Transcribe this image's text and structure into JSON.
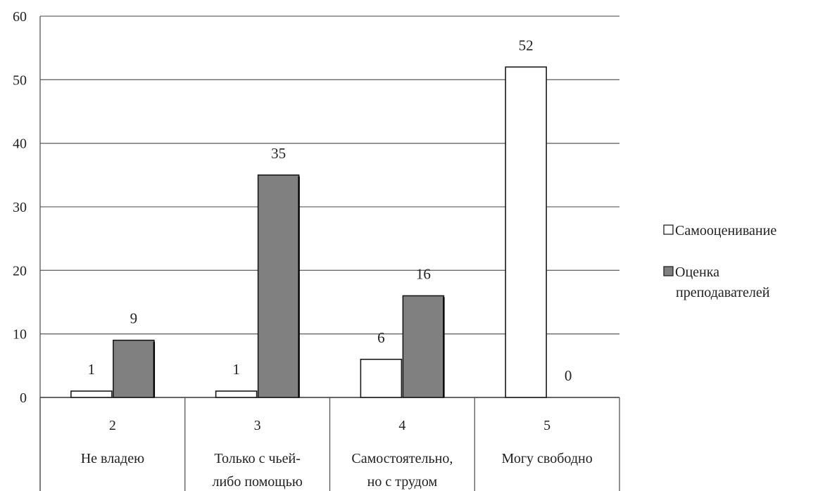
{
  "chart_data": {
    "type": "bar",
    "title": "",
    "xlabel": "",
    "ylabel": "",
    "categories": [
      {
        "code": "2",
        "lines": [
          "Не владею"
        ]
      },
      {
        "code": "3",
        "lines": [
          "Только с чьей-",
          "либо помощью"
        ]
      },
      {
        "code": "4",
        "lines": [
          "Самостоятельно,",
          "но с трудом"
        ]
      },
      {
        "code": "5",
        "lines": [
          "Могу свободно"
        ]
      }
    ],
    "series": [
      {
        "name": "Самооценивание",
        "values": [
          1,
          1,
          6,
          52
        ],
        "color": "#ffffff"
      },
      {
        "name": "Оценка преподавателей",
        "name_lines": [
          "Оценка",
          "преподавателей"
        ],
        "values": [
          9,
          35,
          16,
          0
        ],
        "color": "#808080"
      }
    ],
    "ylim": [
      0,
      60
    ],
    "yticks": [
      0,
      10,
      20,
      30,
      40,
      50,
      60
    ],
    "grid": true,
    "legend_position": "right"
  }
}
